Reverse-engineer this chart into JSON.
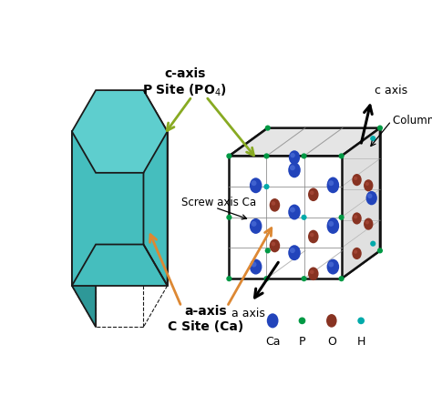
{
  "bg_color": "#ffffff",
  "hex_fill_top": "#5ecece",
  "hex_fill_front": "#45bebe",
  "hex_fill_side_dark": "#2e9898",
  "hex_outline": "#1a1a1a",
  "box_color": "#111111",
  "ca_color1": "#2244bb",
  "ca_color2": "#5577dd",
  "o_color1": "#883322",
  "o_color2": "#bb5544",
  "p_color": "#009944",
  "h_color": "#00aaaa",
  "green_arrow": "#88aa22",
  "orange_arrow": "#dd8833",
  "black": "#111111",
  "gray_grid": "#888888",
  "title": "c-axis\nP Site (PO$_4$)",
  "bottom_label": "a-axis\nC Site (Ca)",
  "c_axis": "c axis",
  "a_axis": "a axis",
  "columnar_ca": "Columnar Ca",
  "screw_ca": "Screw axis Ca",
  "legend_labels": [
    "Ca",
    "P",
    "O",
    "H"
  ],
  "legend_colors_main": [
    "#2244bb",
    "#009944",
    "#883322",
    "#00aaaa"
  ],
  "legend_colors_hi": [
    "#5577dd",
    "#009944",
    "#bb5544",
    "#00aaaa"
  ]
}
